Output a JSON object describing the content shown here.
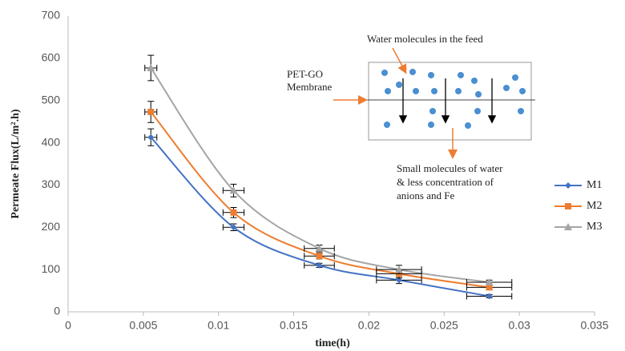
{
  "chart_data": {
    "type": "line",
    "x_label": "time(h)",
    "y_label": "Permeate Flux(L/m².h)",
    "x": [
      0.0055,
      0.011,
      0.0167,
      0.022,
      0.028
    ],
    "x_errors": [
      0.0004,
      0.0007,
      0.001,
      0.0015,
      0.0015
    ],
    "series": [
      {
        "name": "M1",
        "color": "#4472c4",
        "marker": "diamond",
        "values": [
          413,
          200,
          110,
          75,
          37
        ],
        "y_errors": [
          20,
          8,
          5,
          8,
          4
        ]
      },
      {
        "name": "M2",
        "color": "#ed7d31",
        "marker": "square",
        "values": [
          473,
          235,
          132,
          90,
          58
        ],
        "y_errors": [
          25,
          12,
          7,
          10,
          6
        ]
      },
      {
        "name": "M3",
        "color": "#a5a5a5",
        "marker": "triangle",
        "values": [
          577,
          287,
          150,
          100,
          70
        ],
        "y_errors": [
          30,
          15,
          8,
          10,
          5
        ]
      }
    ],
    "xlim": [
      0,
      0.035
    ],
    "xticks": [
      0,
      0.005,
      0.01,
      0.015,
      0.02,
      0.025,
      0.03,
      0.035
    ],
    "ylim": [
      0,
      700
    ],
    "yticks": [
      0,
      100,
      200,
      300,
      400,
      500,
      600,
      700
    ],
    "grid": false,
    "legend": "right",
    "annotations": {
      "feed": "Water molecules in the feed",
      "membrane": [
        "PET-GO",
        "Membrane"
      ],
      "permeate": [
        "Small molecules of water",
        "& less concentration of",
        "anions and Fe"
      ]
    }
  }
}
